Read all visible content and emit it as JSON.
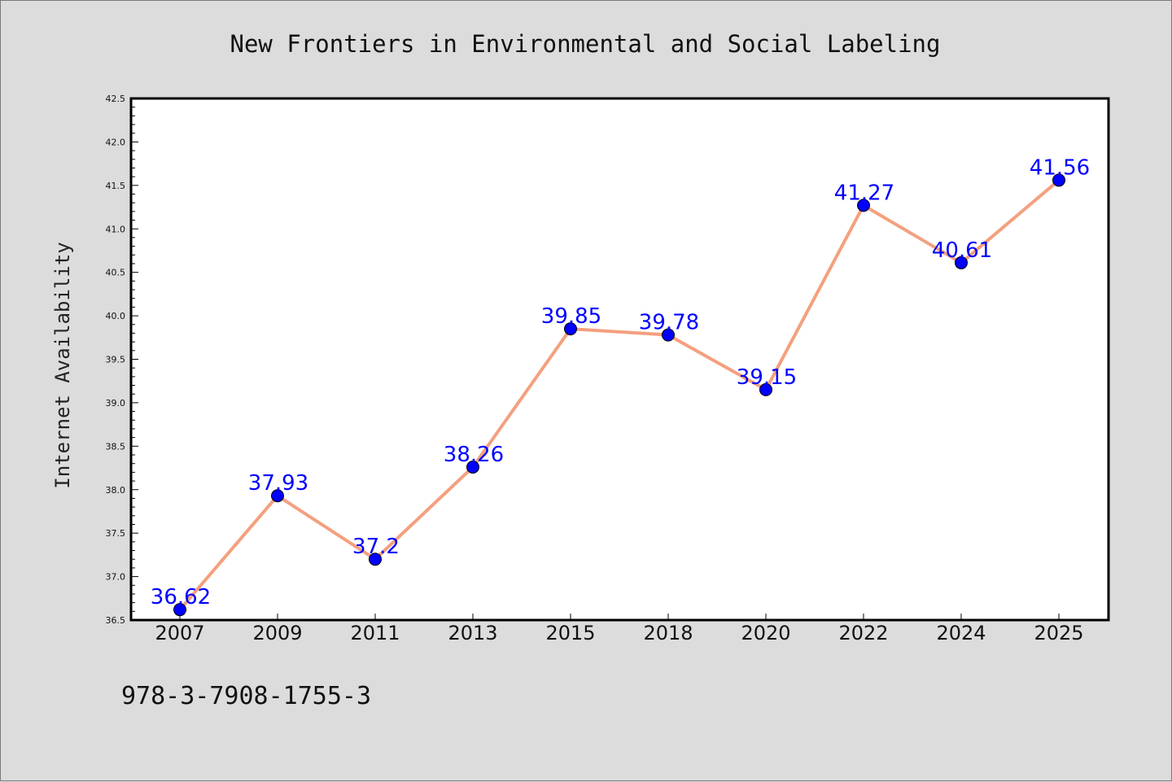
{
  "chart_data": {
    "type": "line",
    "title": "New Frontiers in Environmental and Social Labeling",
    "xlabel": "",
    "ylabel": "Internet Availability",
    "categories": [
      "2007",
      "2009",
      "2011",
      "2013",
      "2015",
      "2018",
      "2020",
      "2022",
      "2024",
      "2025"
    ],
    "series": [
      {
        "values": [
          36.62,
          37.93,
          37.2,
          38.26,
          39.85,
          39.78,
          39.15,
          41.27,
          40.61,
          41.56
        ],
        "data_labels": [
          "36.62",
          "37.93",
          "37.2",
          "38.26",
          "39.85",
          "39.78",
          "39.15",
          "41.27",
          "40.61",
          "41.56"
        ],
        "line_color": "#f4a07e",
        "marker_color": "#0000ff"
      }
    ],
    "ylim": [
      36.5,
      42.5
    ],
    "yticks": [
      "36.5",
      "37.0",
      "37.5",
      "38.0",
      "38.5",
      "39.0",
      "39.5",
      "40.0",
      "40.5",
      "41.0",
      "41.5",
      "42.0",
      "42.5"
    ],
    "grid": false,
    "legend": "none"
  },
  "footer": {
    "isbn": "978-3-7908-1755-3"
  },
  "colors": {
    "background": "#dcdcdc",
    "plot_background": "#ffffff",
    "axis": "#000000",
    "data_label": "#0000ff"
  }
}
